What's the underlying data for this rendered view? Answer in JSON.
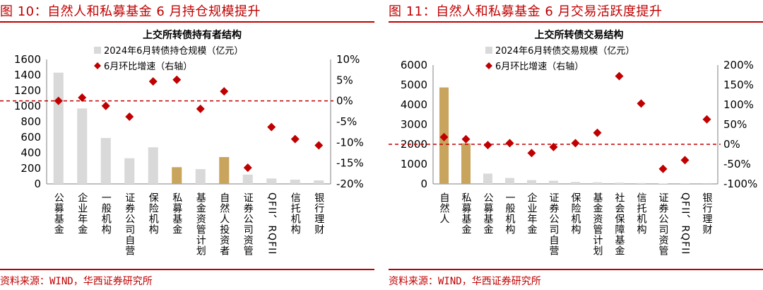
{
  "colors": {
    "accent": "#c00000",
    "bar_gray": "#d9d9d9",
    "bar_gold": "#c9a45c",
    "marker": "#c00000"
  },
  "left": {
    "fig_title": "图 10：自然人和私募基金 6 月持仓规模提升",
    "source": "资料来源：WIND，华西证券研究所",
    "chart_data": {
      "type": "bar",
      "title": "上交所转债持有者结构",
      "legend_bar": "2024年6月转债持仓规模（亿元）",
      "legend_point": "6月环比增速（右轴）",
      "categories": [
        "公募基金",
        "企业年金",
        "一般机构",
        "证券公司自营",
        "保险机构",
        "私募基金",
        "基金资管计划",
        "自然人投资者",
        "证券公司资管",
        "QFII、RQFII",
        "信托机构",
        "银行理财"
      ],
      "values": [
        1430,
        970,
        590,
        330,
        470,
        215,
        190,
        345,
        120,
        70,
        55,
        45
      ],
      "highlight": [
        false,
        false,
        false,
        false,
        false,
        true,
        false,
        true,
        false,
        false,
        false,
        false
      ],
      "growth": [
        0.0,
        0.8,
        -1.2,
        -3.8,
        4.7,
        5.1,
        -1.9,
        2.3,
        -16.1,
        -6.3,
        -9.2,
        -10.7
      ],
      "y_left": {
        "min": 0,
        "max": 1600,
        "step": 200,
        "ticks": [
          "0",
          "200",
          "400",
          "600",
          "800",
          "1000",
          "1200",
          "1400",
          "1600"
        ]
      },
      "y_right": {
        "min": -20,
        "max": 10,
        "step": 5,
        "ticks": [
          "-20%",
          "-15%",
          "-10%",
          "-5%",
          "0%",
          "5%",
          "10%"
        ]
      }
    }
  },
  "right": {
    "fig_title": "图 11：自然人和私募基金 6 月交易活跃度提升",
    "source": "资料来源：WIND，华西证券研究所",
    "chart_data": {
      "type": "bar",
      "title": "上交所转债交易结构",
      "legend_bar": "2024年6月转债交易规模（亿元）",
      "legend_point": "6月环比增速（右轴）",
      "categories": [
        "自然人",
        "私募基金",
        "公募基金",
        "一般机构",
        "企业年金",
        "证券公司自营",
        "保险机构",
        "基金资管计划",
        "社会保障基金",
        "信托机构",
        "证券公司资管",
        "QFII、RQFII",
        "银行理财"
      ],
      "values": [
        4870,
        2050,
        520,
        300,
        190,
        160,
        100,
        80,
        60,
        45,
        20,
        10,
        5
      ],
      "highlight": [
        true,
        true,
        false,
        false,
        false,
        false,
        false,
        false,
        false,
        false,
        false,
        false,
        false
      ],
      "growth": [
        18,
        13,
        -2,
        3,
        -22,
        -7,
        3,
        29,
        172,
        103,
        -62,
        -40,
        63
      ],
      "y_left": {
        "min": 0,
        "max": 6000,
        "step": 1000,
        "ticks": [
          "0",
          "1000",
          "2000",
          "3000",
          "4000",
          "5000",
          "6000"
        ]
      },
      "y_right": {
        "min": -100,
        "max": 200,
        "step": 50,
        "ticks": [
          "-100%",
          "-50%",
          "0%",
          "50%",
          "100%",
          "150%",
          "200%"
        ]
      }
    }
  }
}
